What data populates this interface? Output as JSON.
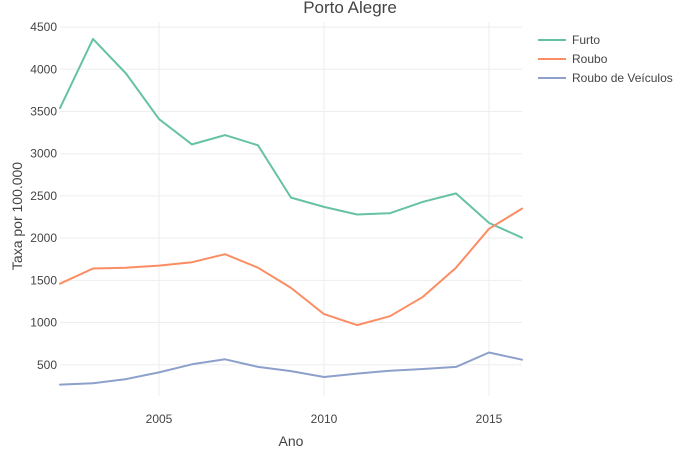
{
  "chart_data": {
    "type": "line",
    "title": "Porto Alegre",
    "xlabel": "Ano",
    "ylabel": "Taxa por 100.000",
    "xlim": [
      2002,
      2016
    ],
    "ylim": [
      130,
      4560
    ],
    "x_ticks": [
      2005,
      2010,
      2015
    ],
    "y_ticks": [
      500,
      1000,
      1500,
      2000,
      2500,
      3000,
      3500,
      4000,
      4500
    ],
    "grid": true,
    "legend_position": "top-right",
    "x": [
      2002,
      2003,
      2004,
      2005,
      2006,
      2007,
      2008,
      2009,
      2010,
      2011,
      2012,
      2013,
      2014,
      2015,
      2016
    ],
    "series": [
      {
        "name": "Furto",
        "color": "#66c2a5",
        "values": [
          3540,
          4360,
          3950,
          3410,
          3110,
          3220,
          3100,
          2480,
          2370,
          2280,
          2295,
          2430,
          2530,
          2180,
          2005
        ]
      },
      {
        "name": "Roubo",
        "color": "#fc8d62",
        "values": [
          1460,
          1640,
          1650,
          1675,
          1715,
          1810,
          1650,
          1410,
          1100,
          970,
          1075,
          1305,
          1650,
          2110,
          2350
        ]
      },
      {
        "name": "Roubo de Veículos",
        "color": "#8da0cb",
        "values": [
          265,
          280,
          330,
          410,
          505,
          565,
          475,
          425,
          355,
          395,
          430,
          450,
          475,
          645,
          560
        ]
      }
    ]
  }
}
